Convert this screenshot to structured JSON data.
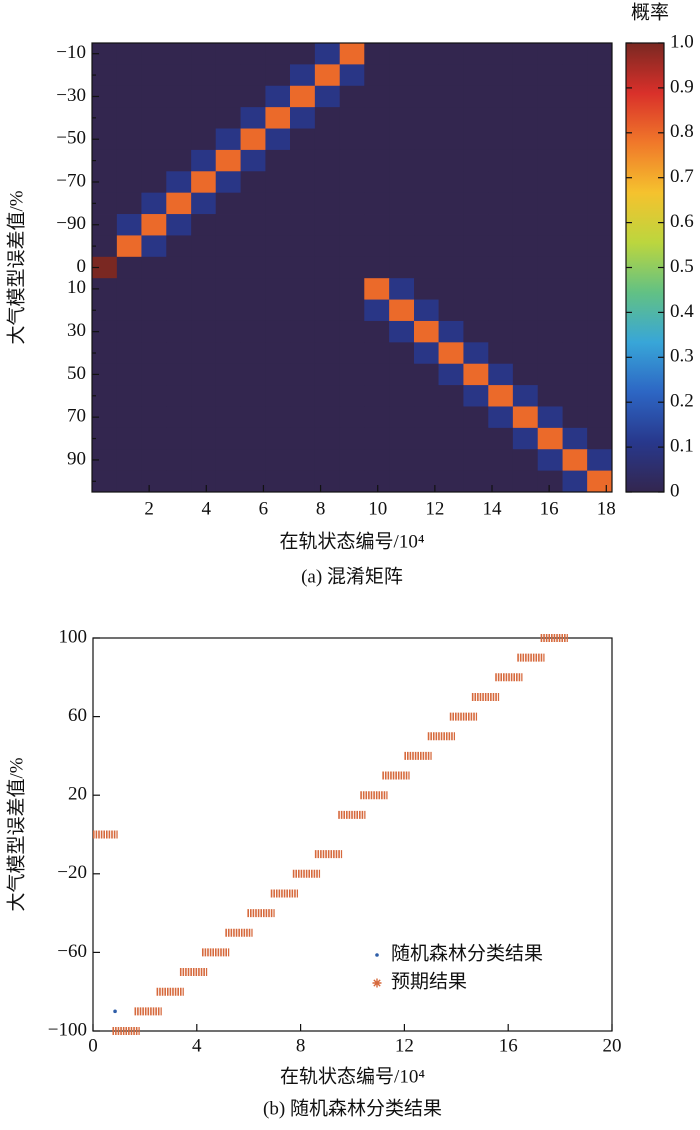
{
  "chart_data": [
    {
      "type": "heatmap",
      "caption": "(a) 混淆矩阵",
      "x_label": "在轨状态编号/10⁴",
      "y_label": "大气模型误差值/%",
      "bins": [
        0,
        0.87,
        1.73,
        2.6,
        3.47,
        4.33,
        5.2,
        6.07,
        6.93,
        7.8,
        8.67,
        9.53,
        10.4,
        11.27,
        12.13,
        13,
        13.87,
        14.73,
        15.6,
        16.47,
        17.33,
        18.2
      ],
      "xlim": [
        0,
        18.2
      ],
      "xticks": [
        2,
        4,
        6,
        8,
        10,
        12,
        14,
        16,
        18
      ],
      "categories": [
        "−10",
        null,
        "−30",
        null,
        "−50",
        null,
        "−70",
        null,
        "−90",
        null,
        "0",
        "10",
        null,
        "30",
        null,
        "50",
        null,
        "70",
        null,
        "90",
        null
      ],
      "values": [
        [
          0,
          0,
          0,
          0,
          0,
          0,
          0,
          0,
          0,
          0.1,
          0.8,
          0,
          0,
          0,
          0,
          0,
          0,
          0,
          0,
          0,
          0
        ],
        [
          0,
          0,
          0,
          0,
          0,
          0,
          0,
          0,
          0.1,
          0.8,
          0.1,
          0,
          0,
          0,
          0,
          0,
          0,
          0,
          0,
          0,
          0
        ],
        [
          0,
          0,
          0,
          0,
          0,
          0,
          0,
          0.1,
          0.8,
          0.1,
          0,
          0,
          0,
          0,
          0,
          0,
          0,
          0,
          0,
          0,
          0
        ],
        [
          0,
          0,
          0,
          0,
          0,
          0,
          0.1,
          0.8,
          0.1,
          0,
          0,
          0,
          0,
          0,
          0,
          0,
          0,
          0,
          0,
          0,
          0
        ],
        [
          0,
          0,
          0,
          0,
          0,
          0.1,
          0.8,
          0.1,
          0,
          0,
          0,
          0,
          0,
          0,
          0,
          0,
          0,
          0,
          0,
          0,
          0
        ],
        [
          0,
          0,
          0,
          0,
          0.1,
          0.8,
          0.1,
          0,
          0,
          0,
          0,
          0,
          0,
          0,
          0,
          0,
          0,
          0,
          0,
          0,
          0
        ],
        [
          0,
          0,
          0,
          0.1,
          0.8,
          0.1,
          0,
          0,
          0,
          0,
          0,
          0,
          0,
          0,
          0,
          0,
          0,
          0,
          0,
          0,
          0
        ],
        [
          0,
          0,
          0.1,
          0.8,
          0.1,
          0,
          0,
          0,
          0,
          0,
          0,
          0,
          0,
          0,
          0,
          0,
          0,
          0,
          0,
          0,
          0
        ],
        [
          0,
          0.1,
          0.8,
          0.1,
          0,
          0,
          0,
          0,
          0,
          0,
          0,
          0,
          0,
          0,
          0,
          0,
          0,
          0,
          0,
          0,
          0
        ],
        [
          0,
          0.8,
          0.1,
          0,
          0,
          0,
          0,
          0,
          0,
          0,
          0,
          0,
          0,
          0,
          0,
          0,
          0,
          0,
          0,
          0,
          0
        ],
        [
          1,
          0,
          0,
          0,
          0,
          0,
          0,
          0,
          0,
          0,
          0,
          0,
          0,
          0,
          0,
          0,
          0,
          0,
          0,
          0,
          0
        ],
        [
          0,
          0,
          0,
          0,
          0,
          0,
          0,
          0,
          0,
          0,
          0,
          0.8,
          0.1,
          0,
          0,
          0,
          0,
          0,
          0,
          0,
          0
        ],
        [
          0,
          0,
          0,
          0,
          0,
          0,
          0,
          0,
          0,
          0,
          0,
          0.1,
          0.8,
          0.1,
          0,
          0,
          0,
          0,
          0,
          0,
          0
        ],
        [
          0,
          0,
          0,
          0,
          0,
          0,
          0,
          0,
          0,
          0,
          0,
          0,
          0.1,
          0.8,
          0.1,
          0,
          0,
          0,
          0,
          0,
          0
        ],
        [
          0,
          0,
          0,
          0,
          0,
          0,
          0,
          0,
          0,
          0,
          0,
          0,
          0,
          0.1,
          0.8,
          0.1,
          0,
          0,
          0,
          0,
          0
        ],
        [
          0,
          0,
          0,
          0,
          0,
          0,
          0,
          0,
          0,
          0,
          0,
          0,
          0,
          0,
          0.1,
          0.8,
          0.1,
          0,
          0,
          0,
          0
        ],
        [
          0,
          0,
          0,
          0,
          0,
          0,
          0,
          0,
          0,
          0,
          0,
          0,
          0,
          0,
          0,
          0.1,
          0.8,
          0.1,
          0,
          0,
          0
        ],
        [
          0,
          0,
          0,
          0,
          0,
          0,
          0,
          0,
          0,
          0,
          0,
          0,
          0,
          0,
          0,
          0,
          0.1,
          0.8,
          0.1,
          0,
          0
        ],
        [
          0,
          0,
          0,
          0,
          0,
          0,
          0,
          0,
          0,
          0,
          0,
          0,
          0,
          0,
          0,
          0,
          0,
          0.1,
          0.8,
          0.1,
          0
        ],
        [
          0,
          0,
          0,
          0,
          0,
          0,
          0,
          0,
          0,
          0,
          0,
          0,
          0,
          0,
          0,
          0,
          0,
          0,
          0.1,
          0.8,
          0.1
        ],
        [
          0,
          0,
          0,
          0,
          0,
          0,
          0,
          0,
          0,
          0,
          0,
          0,
          0,
          0,
          0,
          0,
          0,
          0,
          0,
          0.1,
          0.8
        ]
      ],
      "colorbar": {
        "title": "概率",
        "ylim": [
          0,
          1
        ],
        "yticks": [
          0,
          0.1,
          0.2,
          0.3,
          0.4,
          0.5,
          0.6,
          0.7,
          0.8,
          0.9,
          {
            "value": 1,
            "label": "1.0"
          }
        ],
        "colors": [
          "#33264f",
          "#28388c",
          "#2d66c4",
          "#38a6d8",
          "#62c184",
          "#bcd63e",
          "#f5c22e",
          "#f0782a",
          "#d9302a",
          "#7a2822"
        ]
      }
    },
    {
      "type": "scatter",
      "caption": "(b) 随机森林分类结果",
      "x_label": "在轨状态编号/10⁴",
      "y_label": "大气模型误差值/%",
      "xlim": [
        0,
        20
      ],
      "xticks": [
        0,
        4,
        8,
        12,
        16,
        20
      ],
      "ylim": [
        -100,
        100
      ],
      "yticks": [
        {
          "value": -100,
          "label": "−100"
        },
        {
          "value": -60,
          "label": "−60"
        },
        {
          "value": -20,
          "label": "−20"
        },
        20,
        60,
        100
      ],
      "legend": "lower right",
      "series": [
        {
          "name": "随机森林分类结果",
          "color": "#2f5ea8",
          "marker": "dot",
          "x": [
            0.85
          ],
          "values": [
            -90
          ]
        },
        {
          "name": "预期结果",
          "color": "#d6693c",
          "marker": "asterisk",
          "x": [
            0,
            0.75,
            1.6,
            2.45,
            3.35,
            4.2,
            5.1,
            5.95,
            6.85,
            7.7,
            8.55,
            9.45,
            10.3,
            11.15,
            12,
            12.9,
            13.75,
            14.6,
            15.5,
            16.35,
            17.25
          ],
          "x_end": [
            0.95,
            1.8,
            2.65,
            3.5,
            4.4,
            5.25,
            6.15,
            7,
            7.9,
            8.75,
            9.6,
            10.5,
            11.35,
            12.2,
            13.05,
            13.95,
            14.8,
            15.65,
            16.55,
            17.4,
            18.3
          ],
          "values": [
            0,
            -100,
            -90,
            -80,
            -70,
            -60,
            -50,
            -40,
            -30,
            -20,
            -10,
            10,
            20,
            30,
            40,
            50,
            60,
            70,
            80,
            90,
            100
          ]
        }
      ]
    }
  ]
}
